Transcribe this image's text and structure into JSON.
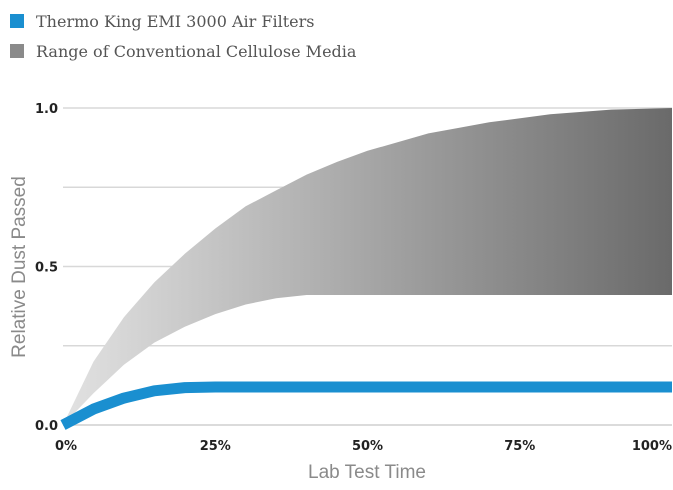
{
  "chart_data": {
    "type": "area",
    "title": "",
    "xlabel": "Lab Test Time",
    "ylabel": "Relative Dust Passed",
    "xlim": [
      0,
      100
    ],
    "ylim": [
      0,
      1.0
    ],
    "x_ticks": [
      "0%",
      "25%",
      "50%",
      "75%",
      "100%"
    ],
    "y_ticks": [
      "0.0",
      "0.5",
      "1.0"
    ],
    "grid": "horizontal",
    "legend_position": "top-left",
    "series": [
      {
        "name": "Thermo King EMI 3000 Air Filters",
        "type": "line",
        "color": "#1a8fd0",
        "x": [
          0,
          5,
          10,
          15,
          20,
          25,
          30,
          50,
          75,
          100
        ],
        "y": [
          0,
          0.05,
          0.085,
          0.108,
          0.118,
          0.12,
          0.12,
          0.12,
          0.12,
          0.12
        ]
      },
      {
        "name": "Range of Conventional Cellulose Media",
        "type": "band",
        "color": "#8a8a8a",
        "x": [
          0,
          5,
          10,
          15,
          20,
          25,
          30,
          35,
          40,
          45,
          50,
          60,
          70,
          80,
          90,
          100
        ],
        "upper": [
          0,
          0.2,
          0.34,
          0.45,
          0.54,
          0.62,
          0.69,
          0.74,
          0.79,
          0.83,
          0.865,
          0.92,
          0.955,
          0.98,
          0.995,
          1.0
        ],
        "lower": [
          0,
          0.1,
          0.19,
          0.26,
          0.31,
          0.35,
          0.38,
          0.4,
          0.41,
          0.41,
          0.41,
          0.41,
          0.41,
          0.41,
          0.41,
          0.41
        ]
      }
    ]
  }
}
